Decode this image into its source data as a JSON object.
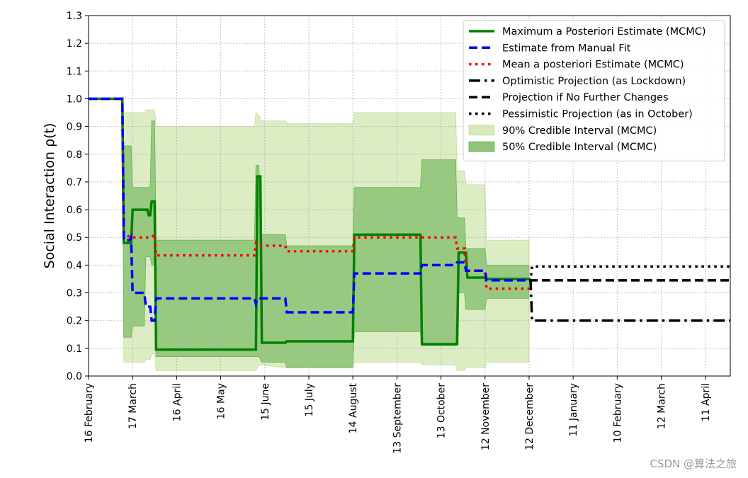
{
  "watermark": "CSDN @算法之旅",
  "chart_data": {
    "type": "line",
    "title": "",
    "ylabel": "Social Interaction ρ(t)",
    "xlabel": "",
    "ylim": [
      0,
      1.3
    ],
    "yticks": [
      0.0,
      0.1,
      0.2,
      0.3,
      0.4,
      0.5,
      0.6,
      0.7,
      0.8,
      0.9,
      1.0,
      1.1,
      1.2,
      1.3
    ],
    "xlim": [
      0,
      437
    ],
    "xticks": [
      {
        "x": 0,
        "label": "16 February"
      },
      {
        "x": 30,
        "label": "17 March"
      },
      {
        "x": 60,
        "label": "16 April"
      },
      {
        "x": 90,
        "label": "16 May"
      },
      {
        "x": 120,
        "label": "15 June"
      },
      {
        "x": 150,
        "label": "15 July"
      },
      {
        "x": 180,
        "label": "14 August"
      },
      {
        "x": 210,
        "label": "13 September"
      },
      {
        "x": 240,
        "label": "13 October"
      },
      {
        "x": 270,
        "label": "12 November"
      },
      {
        "x": 300,
        "label": "12 December"
      },
      {
        "x": 330,
        "label": "11 January"
      },
      {
        "x": 360,
        "label": "10 February"
      },
      {
        "x": 390,
        "label": "12 March"
      },
      {
        "x": 420,
        "label": "11 April"
      }
    ],
    "grid": true,
    "legend_position": "top-right",
    "colors": {
      "map": "#008000",
      "manual": "#0000ff",
      "mean": "#ff0000",
      "projection": "#000000",
      "ci90": "#d6e9b8",
      "ci50": "#8fc57a"
    },
    "series": [
      {
        "name": "Maximum a Posteriori Estimate (MCMC)",
        "style": "solid",
        "points": [
          [
            0,
            1.0
          ],
          [
            23,
            1.0
          ],
          [
            24,
            0.48
          ],
          [
            29,
            0.48
          ],
          [
            30,
            0.6
          ],
          [
            40,
            0.6
          ],
          [
            41,
            0.58
          ],
          [
            42,
            0.58
          ],
          [
            43,
            0.63
          ],
          [
            45,
            0.63
          ],
          [
            46,
            0.095
          ],
          [
            114,
            0.095
          ],
          [
            115,
            0.72
          ],
          [
            117,
            0.72
          ],
          [
            118,
            0.12
          ],
          [
            134,
            0.12
          ],
          [
            135,
            0.125
          ],
          [
            180,
            0.125
          ],
          [
            181,
            0.51
          ],
          [
            226,
            0.51
          ],
          [
            227,
            0.115
          ],
          [
            251,
            0.115
          ],
          [
            252,
            0.445
          ],
          [
            257,
            0.445
          ],
          [
            258,
            0.355
          ],
          [
            270,
            0.355
          ],
          [
            271,
            0.35
          ],
          [
            301,
            0.35
          ]
        ]
      },
      {
        "name": "Estimate from Manual Fit",
        "style": "dashed",
        "points": [
          [
            0,
            1.0
          ],
          [
            23,
            1.0
          ],
          [
            24,
            0.49
          ],
          [
            28,
            0.49
          ],
          [
            29,
            0.5
          ],
          [
            30,
            0.3
          ],
          [
            38,
            0.3
          ],
          [
            39,
            0.25
          ],
          [
            42,
            0.25
          ],
          [
            43,
            0.2
          ],
          [
            45,
            0.2
          ],
          [
            46,
            0.28
          ],
          [
            113,
            0.28
          ],
          [
            114,
            0.26
          ],
          [
            115,
            0.28
          ],
          [
            134,
            0.28
          ],
          [
            135,
            0.23
          ],
          [
            180,
            0.23
          ],
          [
            181,
            0.37
          ],
          [
            226,
            0.37
          ],
          [
            227,
            0.4
          ],
          [
            250,
            0.4
          ],
          [
            251,
            0.41
          ],
          [
            256,
            0.41
          ],
          [
            257,
            0.38
          ],
          [
            270,
            0.38
          ],
          [
            271,
            0.345
          ],
          [
            301,
            0.345
          ]
        ]
      },
      {
        "name": "Mean a posteriori Estimate (MCMC)",
        "style": "dotted",
        "points": [
          [
            0,
            1.0
          ],
          [
            23,
            1.0
          ],
          [
            24,
            0.52
          ],
          [
            28,
            0.5
          ],
          [
            43,
            0.5
          ],
          [
            45,
            0.51
          ],
          [
            46,
            0.435
          ],
          [
            113,
            0.435
          ],
          [
            114,
            0.48
          ],
          [
            116,
            0.47
          ],
          [
            134,
            0.47
          ],
          [
            135,
            0.45
          ],
          [
            180,
            0.45
          ],
          [
            181,
            0.5
          ],
          [
            250,
            0.5
          ],
          [
            251,
            0.46
          ],
          [
            256,
            0.46
          ],
          [
            257,
            0.38
          ],
          [
            270,
            0.38
          ],
          [
            271,
            0.315
          ],
          [
            301,
            0.315
          ]
        ]
      },
      {
        "name": "Optimistic Projection (as Lockdown)",
        "style": "dashdot",
        "points": [
          [
            300,
            0.345
          ],
          [
            301,
            0.345
          ],
          [
            302,
            0.2
          ],
          [
            437,
            0.2
          ]
        ]
      },
      {
        "name": "Projection if No Further Changes",
        "style": "dashed",
        "points": [
          [
            300,
            0.345
          ],
          [
            437,
            0.345
          ]
        ]
      },
      {
        "name": "Pessimistic Projection (as in October)",
        "style": "dotted",
        "points": [
          [
            300,
            0.345
          ],
          [
            301,
            0.345
          ],
          [
            302,
            0.395
          ],
          [
            437,
            0.395
          ]
        ]
      }
    ],
    "bands": [
      {
        "name": "90% Credible Interval (MCMC)",
        "x": [
          0,
          23,
          24,
          29,
          30,
          38,
          39,
          42,
          43,
          45,
          46,
          113,
          114,
          116,
          118,
          134,
          135,
          180,
          181,
          226,
          227,
          250,
          251,
          256,
          257,
          270,
          271,
          300
        ],
        "low": [
          1.0,
          1.0,
          0.05,
          0.05,
          0.05,
          0.05,
          0.06,
          0.06,
          0.08,
          0.08,
          0.02,
          0.02,
          0.02,
          0.04,
          0.04,
          0.03,
          0.03,
          0.03,
          0.05,
          0.05,
          0.04,
          0.04,
          0.02,
          0.02,
          0.03,
          0.03,
          0.05,
          0.05
        ],
        "high": [
          1.0,
          1.0,
          0.95,
          0.95,
          0.95,
          0.95,
          0.96,
          0.96,
          0.96,
          0.96,
          0.9,
          0.9,
          0.95,
          0.94,
          0.92,
          0.92,
          0.91,
          0.91,
          0.95,
          0.95,
          0.95,
          0.95,
          0.74,
          0.74,
          0.69,
          0.69,
          0.49,
          0.49
        ]
      },
      {
        "name": "50% Credible Interval (MCMC)",
        "x": [
          0,
          23,
          24,
          29,
          30,
          38,
          39,
          42,
          43,
          45,
          46,
          113,
          114,
          116,
          118,
          134,
          135,
          180,
          181,
          226,
          227,
          250,
          251,
          256,
          257,
          270,
          271,
          300
        ],
        "low": [
          1.0,
          1.0,
          0.14,
          0.14,
          0.18,
          0.18,
          0.43,
          0.43,
          0.4,
          0.4,
          0.07,
          0.07,
          0.07,
          0.07,
          0.05,
          0.05,
          0.03,
          0.03,
          0.16,
          0.16,
          0.11,
          0.11,
          0.3,
          0.3,
          0.24,
          0.24,
          0.28,
          0.28
        ],
        "high": [
          1.0,
          1.0,
          0.83,
          0.83,
          0.68,
          0.68,
          0.68,
          0.68,
          0.92,
          0.92,
          0.49,
          0.49,
          0.76,
          0.76,
          0.51,
          0.51,
          0.47,
          0.47,
          0.68,
          0.68,
          0.78,
          0.78,
          0.57,
          0.57,
          0.46,
          0.46,
          0.4,
          0.4
        ]
      }
    ]
  }
}
